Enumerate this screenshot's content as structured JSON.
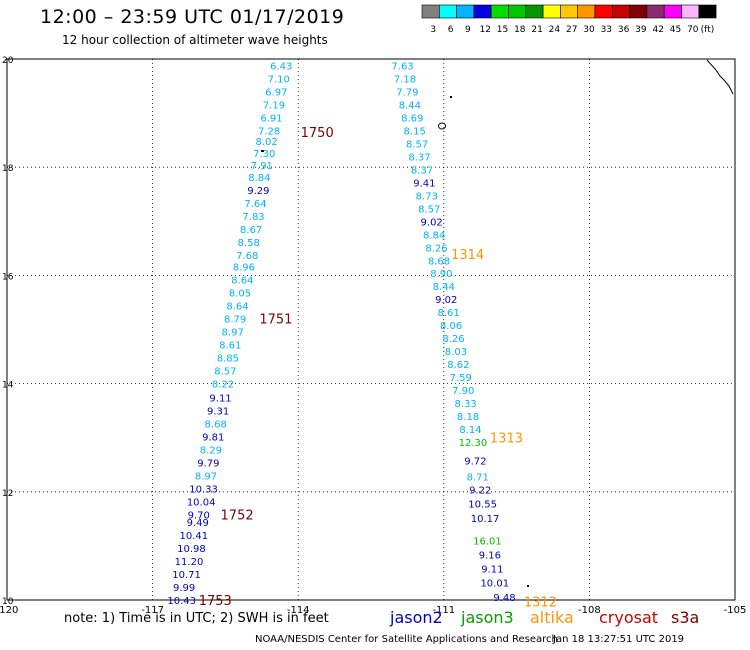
{
  "header": {
    "title": "12:00 – 23:59 UTC 01/17/2019",
    "subtitle": "12 hour collection of altimeter wave heights"
  },
  "color_scale": {
    "labels": [
      "3",
      "6",
      "9",
      "12",
      "15",
      "18",
      "21",
      "24",
      "27",
      "30",
      "33",
      "36",
      "39",
      "42",
      "45",
      "70",
      "(ft)"
    ],
    "colors": [
      "#808080",
      "#00ffff",
      "#00b4ff",
      "#0000e0",
      "#00e000",
      "#00c800",
      "#009600",
      "#ffff00",
      "#ffc800",
      "#ff9600",
      "#ff0000",
      "#c80000",
      "#800000",
      "#8c2a6e",
      "#ff00ff",
      "#ffb4ff",
      "#000000"
    ]
  },
  "footer": {
    "note": "note:  1) Time is in UTC;  2) SWH is in feet",
    "credit": "NOAA/NESDIS Center for Satellite Applications and Research",
    "timestamp": "Jan 18 13:27:51 UTC 2019"
  },
  "satellites": [
    {
      "name": "jason2",
      "color": "#0000c8"
    },
    {
      "name": "jason3",
      "color": "#00a000"
    },
    {
      "name": "altika",
      "color": "#ff9600"
    },
    {
      "name": "cryosat",
      "color": "#d00000"
    },
    {
      "name": "s3a",
      "color": "#800000"
    }
  ],
  "chart_data": {
    "type": "scatter",
    "xlim": [
      -120,
      -105
    ],
    "ylim": [
      10,
      20
    ],
    "x_ticks": [
      "-120",
      "-117",
      "-114",
      "-111",
      "-108",
      "-105"
    ],
    "y_ticks": [
      "10",
      "12",
      "14",
      "16",
      "18",
      "20"
    ],
    "grid": true,
    "point_colors": {
      "cyan": "#00b4ff",
      "blue": "#0000c8",
      "green": "#00c000"
    },
    "series": [
      {
        "points": [
          {
            "x": -114.35,
            "y": 19.88,
            "v": "6.43",
            "c": "cyan"
          },
          {
            "x": -114.4,
            "y": 19.64,
            "v": "7.10",
            "c": "cyan"
          },
          {
            "x": -114.45,
            "y": 19.4,
            "v": "6.97",
            "c": "cyan"
          },
          {
            "x": -114.5,
            "y": 19.16,
            "v": "7.19",
            "c": "cyan"
          },
          {
            "x": -114.55,
            "y": 18.92,
            "v": "6.91",
            "c": "cyan"
          },
          {
            "x": -114.6,
            "y": 18.68,
            "v": "7.28",
            "c": "cyan"
          },
          {
            "x": -114.65,
            "y": 18.48,
            "v": "8.02",
            "c": "cyan"
          },
          {
            "x": -114.7,
            "y": 18.26,
            "v": "7.30",
            "c": "cyan"
          },
          {
            "x": -114.75,
            "y": 18.04,
            "v": "7.91",
            "c": "cyan"
          },
          {
            "x": -114.8,
            "y": 17.82,
            "v": "8.84",
            "c": "cyan"
          },
          {
            "x": -114.82,
            "y": 17.58,
            "v": "9.29",
            "c": "blue"
          },
          {
            "x": -114.88,
            "y": 17.34,
            "v": "7.64",
            "c": "cyan"
          },
          {
            "x": -114.92,
            "y": 17.1,
            "v": "7.83",
            "c": "cyan"
          },
          {
            "x": -114.97,
            "y": 16.86,
            "v": "8.67",
            "c": "cyan"
          },
          {
            "x": -115.02,
            "y": 16.62,
            "v": "8.58",
            "c": "cyan"
          },
          {
            "x": -115.05,
            "y": 16.38,
            "v": "7.68",
            "c": "cyan"
          },
          {
            "x": -115.12,
            "y": 16.16,
            "v": "8.96",
            "c": "cyan"
          },
          {
            "x": -115.15,
            "y": 15.92,
            "v": "8.64",
            "c": "cyan"
          },
          {
            "x": -115.2,
            "y": 15.68,
            "v": "8.05",
            "c": "cyan"
          },
          {
            "x": -115.25,
            "y": 15.44,
            "v": "8.64",
            "c": "cyan"
          },
          {
            "x": -115.3,
            "y": 15.2,
            "v": "8.79",
            "c": "cyan"
          },
          {
            "x": -115.35,
            "y": 14.96,
            "v": "8.97",
            "c": "cyan"
          },
          {
            "x": -115.4,
            "y": 14.72,
            "v": "8.61",
            "c": "cyan"
          },
          {
            "x": -115.45,
            "y": 14.48,
            "v": "8.85",
            "c": "cyan"
          },
          {
            "x": -115.5,
            "y": 14.24,
            "v": "8.57",
            "c": "cyan"
          },
          {
            "x": -115.55,
            "y": 14.0,
            "v": "8.22",
            "c": "cyan"
          },
          {
            "x": -115.6,
            "y": 13.74,
            "v": "9.11",
            "c": "blue"
          },
          {
            "x": -115.65,
            "y": 13.5,
            "v": "9.31",
            "c": "blue"
          },
          {
            "x": -115.7,
            "y": 13.26,
            "v": "8.68",
            "c": "cyan"
          },
          {
            "x": -115.75,
            "y": 13.02,
            "v": "9.81",
            "c": "blue"
          },
          {
            "x": -115.8,
            "y": 12.78,
            "v": "8.29",
            "c": "cyan"
          },
          {
            "x": -115.85,
            "y": 12.54,
            "v": "9.79",
            "c": "blue"
          },
          {
            "x": -115.9,
            "y": 12.3,
            "v": "8.97",
            "c": "cyan"
          },
          {
            "x": -115.95,
            "y": 12.06,
            "v": "10.33",
            "c": "blue"
          },
          {
            "x": -116.0,
            "y": 11.82,
            "v": "10.04",
            "c": "blue"
          },
          {
            "x": -116.05,
            "y": 11.58,
            "v": "9.70",
            "c": "blue"
          },
          {
            "x": -116.07,
            "y": 11.44,
            "v": "9.49",
            "c": "blue"
          },
          {
            "x": -116.15,
            "y": 11.2,
            "v": "10.41",
            "c": "blue"
          },
          {
            "x": -116.2,
            "y": 10.96,
            "v": "10.98",
            "c": "blue"
          },
          {
            "x": -116.25,
            "y": 10.72,
            "v": "11.20",
            "c": "blue"
          },
          {
            "x": -116.3,
            "y": 10.48,
            "v": "10.71",
            "c": "blue"
          },
          {
            "x": -116.35,
            "y": 10.24,
            "v": "9.99",
            "c": "blue"
          },
          {
            "x": -116.4,
            "y": 10.0,
            "v": "10.43",
            "c": "blue"
          },
          {
            "x": -111.85,
            "y": 19.88,
            "v": "7.63",
            "c": "cyan"
          },
          {
            "x": -111.8,
            "y": 19.64,
            "v": "7.18",
            "c": "cyan"
          },
          {
            "x": -111.75,
            "y": 19.4,
            "v": "7.79",
            "c": "cyan"
          },
          {
            "x": -111.7,
            "y": 19.16,
            "v": "8.44",
            "c": "cyan"
          },
          {
            "x": -111.65,
            "y": 18.92,
            "v": "8.69",
            "c": "cyan"
          },
          {
            "x": -111.6,
            "y": 18.68,
            "v": "8.15",
            "c": "cyan"
          },
          {
            "x": -111.55,
            "y": 18.44,
            "v": "8.57",
            "c": "cyan"
          },
          {
            "x": -111.5,
            "y": 18.2,
            "v": "8.37",
            "c": "cyan"
          },
          {
            "x": -111.45,
            "y": 17.96,
            "v": "8.37",
            "c": "cyan"
          },
          {
            "x": -111.4,
            "y": 17.72,
            "v": "9.41",
            "c": "blue"
          },
          {
            "x": -111.35,
            "y": 17.48,
            "v": "8.73",
            "c": "cyan"
          },
          {
            "x": -111.3,
            "y": 17.24,
            "v": "8.57",
            "c": "cyan"
          },
          {
            "x": -111.25,
            "y": 17.0,
            "v": "9.02",
            "c": "blue"
          },
          {
            "x": -111.2,
            "y": 16.76,
            "v": "8.84",
            "c": "cyan"
          },
          {
            "x": -111.15,
            "y": 16.52,
            "v": "8.26",
            "c": "cyan"
          },
          {
            "x": -111.1,
            "y": 16.28,
            "v": "8.68",
            "c": "cyan"
          },
          {
            "x": -111.05,
            "y": 16.04,
            "v": "8.90",
            "c": "cyan"
          },
          {
            "x": -111.0,
            "y": 15.8,
            "v": "8.44",
            "c": "cyan"
          },
          {
            "x": -110.95,
            "y": 15.56,
            "v": "9.02",
            "c": "blue"
          },
          {
            "x": -110.9,
            "y": 15.32,
            "v": "8.61",
            "c": "cyan"
          },
          {
            "x": -110.85,
            "y": 15.08,
            "v": "8.06",
            "c": "cyan"
          },
          {
            "x": -110.8,
            "y": 14.84,
            "v": "8.26",
            "c": "cyan"
          },
          {
            "x": -110.75,
            "y": 14.6,
            "v": "8.03",
            "c": "cyan"
          },
          {
            "x": -110.7,
            "y": 14.36,
            "v": "8.62",
            "c": "cyan"
          },
          {
            "x": -110.65,
            "y": 14.12,
            "v": "7.59",
            "c": "cyan"
          },
          {
            "x": -110.6,
            "y": 13.88,
            "v": "7.90",
            "c": "cyan"
          },
          {
            "x": -110.55,
            "y": 13.64,
            "v": "8.33",
            "c": "cyan"
          },
          {
            "x": -110.5,
            "y": 13.4,
            "v": "8.18",
            "c": "cyan"
          },
          {
            "x": -110.45,
            "y": 13.16,
            "v": "8.14",
            "c": "cyan"
          },
          {
            "x": -110.4,
            "y": 12.92,
            "v": "12.30",
            "c": "green"
          },
          {
            "x": -110.35,
            "y": 12.58,
            "v": "9.72",
            "c": "blue"
          },
          {
            "x": -110.3,
            "y": 12.28,
            "v": "8.71",
            "c": "cyan"
          },
          {
            "x": -110.25,
            "y": 12.04,
            "v": "9.22",
            "c": "blue"
          },
          {
            "x": -110.2,
            "y": 11.78,
            "v": "10.55",
            "c": "blue"
          },
          {
            "x": -110.15,
            "y": 11.52,
            "v": "10.17",
            "c": "blue"
          },
          {
            "x": -110.1,
            "y": 11.1,
            "v": "16.01",
            "c": "green"
          },
          {
            "x": -110.05,
            "y": 10.84,
            "v": "9.16",
            "c": "blue"
          },
          {
            "x": -110.0,
            "y": 10.58,
            "v": "9.11",
            "c": "blue"
          },
          {
            "x": -109.95,
            "y": 10.32,
            "v": "10.01",
            "c": "blue"
          },
          {
            "x": -109.75,
            "y": 10.06,
            "v": "9.48",
            "c": "blue"
          }
        ]
      }
    ],
    "annotations": [
      {
        "text": "1750",
        "x": -113.95,
        "y": 18.65,
        "color": "#800000"
      },
      {
        "text": "1751",
        "x": -114.8,
        "y": 15.2,
        "color": "#800000"
      },
      {
        "text": "1752",
        "x": -115.6,
        "y": 11.58,
        "color": "#800000"
      },
      {
        "text": "1753",
        "x": -116.05,
        "y": 10.0,
        "color": "#800000"
      },
      {
        "text": "1314",
        "x": -110.85,
        "y": 16.4,
        "color": "#ff9600"
      },
      {
        "text": "1313",
        "x": -110.05,
        "y": 13.0,
        "color": "#ff9600"
      },
      {
        "text": "1312",
        "x": -109.35,
        "y": 9.97,
        "color": "#ff9600"
      }
    ]
  }
}
